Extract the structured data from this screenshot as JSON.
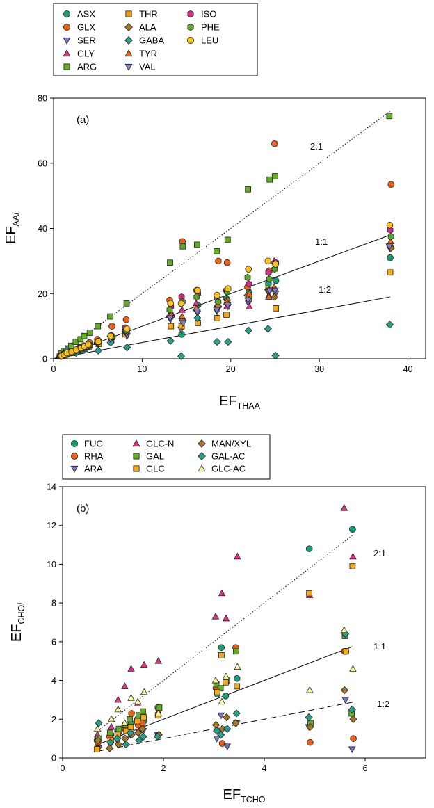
{
  "chart_data": [
    {
      "type": "scatter",
      "panel_label": "(a)",
      "xlabel_main": "EF",
      "xlabel_sub": "THAA",
      "ylabel_main": "EF",
      "ylabel_sub": "AAi",
      "xlim": [
        0,
        42
      ],
      "ylim": [
        0,
        80
      ],
      "xticks": [
        0,
        10,
        20,
        30,
        40
      ],
      "yticks": [
        0,
        20,
        40,
        60,
        80
      ],
      "grid": false,
      "legend_placement": "top-left, above plot",
      "legend": [
        {
          "name": "ASX",
          "marker": "circle",
          "color": "#1a9e77"
        },
        {
          "name": "GLX",
          "marker": "circle",
          "color": "#e8621a"
        },
        {
          "name": "SER",
          "marker": "triangle-down",
          "color": "#7b72c4"
        },
        {
          "name": "GLY",
          "marker": "triangle-up",
          "color": "#e0348a"
        },
        {
          "name": "ARG",
          "marker": "square",
          "color": "#65ab2a"
        },
        {
          "name": "THR",
          "marker": "square",
          "color": "#f0a81c"
        },
        {
          "name": "ALA",
          "marker": "diamond",
          "color": "#a6762a"
        },
        {
          "name": "GABA",
          "marker": "diamond",
          "color": "#2aa08a"
        },
        {
          "name": "TYR",
          "marker": "triangle-up",
          "color": "#e86a1a"
        },
        {
          "name": "VAL",
          "marker": "triangle-down",
          "color": "#8a7cc8"
        },
        {
          "name": "ISO",
          "marker": "hexagon",
          "color": "#d62e8a"
        },
        {
          "name": "PHE",
          "marker": "hexagon",
          "color": "#5aa82a"
        },
        {
          "name": "LEU",
          "marker": "circle",
          "color": "#f7c21e"
        }
      ],
      "reference_lines": [
        {
          "label": "2:1",
          "slope": 2,
          "x_range": [
            0,
            38
          ],
          "style": "dotted"
        },
        {
          "label": "1:1",
          "slope": 1,
          "x_range": [
            0,
            38
          ],
          "style": "solid"
        },
        {
          "label": "1:2",
          "slope": 0.5,
          "x_range": [
            0,
            38
          ],
          "style": "solid"
        }
      ],
      "x_groups": [
        0.8,
        1.2,
        1.6,
        2.0,
        2.6,
        3.0,
        3.5,
        4.0,
        5.0,
        6.5,
        8.2,
        13.2,
        14.5,
        16.2,
        18.5,
        19.6,
        22.0,
        24.3,
        25.0,
        38.0
      ],
      "series": [
        {
          "name": "ASX",
          "values": [
            0.8,
            1.2,
            1.7,
            2.0,
            2.6,
            3.1,
            3.4,
            4.1,
            5.1,
            6.5,
            8.5,
            13.5,
            7.5,
            16.5,
            16.0,
            18.5,
            20.5,
            23.0,
            24.0,
            31.0
          ]
        },
        {
          "name": "GLX",
          "values": [
            1.0,
            1.5,
            2.0,
            2.4,
            3.0,
            3.6,
            4.0,
            5.0,
            6.0,
            10.0,
            12.0,
            18.0,
            36.0,
            21.0,
            30.0,
            29.5,
            22.0,
            27.0,
            66.0,
            53.5
          ]
        },
        {
          "name": "SER",
          "values": [
            0.8,
            1.0,
            1.5,
            1.9,
            2.5,
            2.9,
            3.2,
            3.9,
            4.5,
            6.0,
            7.0,
            12.0,
            9.0,
            14.0,
            14.5,
            16.0,
            17.0,
            20.5,
            20.0,
            34.0
          ]
        },
        {
          "name": "GLY",
          "values": [
            0.9,
            1.3,
            1.8,
            2.1,
            2.8,
            3.2,
            3.7,
            4.3,
            5.3,
            7.0,
            9.0,
            14.0,
            15.0,
            17.0,
            18.0,
            16.0,
            16.0,
            19.5,
            30.0,
            35.0
          ]
        },
        {
          "name": "ARG",
          "values": [
            1.6,
            2.4,
            3.2,
            4.0,
            5.2,
            6.0,
            7.0,
            8.0,
            10.0,
            13.0,
            17.0,
            29.5,
            34.5,
            35.0,
            33.0,
            36.5,
            52.0,
            55.0,
            56.0,
            74.5
          ]
        },
        {
          "name": "THR",
          "values": [
            0.7,
            1.1,
            1.4,
            1.8,
            2.3,
            2.7,
            3.1,
            3.6,
            4.6,
            5.9,
            7.5,
            10.0,
            10.0,
            11.0,
            12.5,
            13.5,
            18.5,
            21.5,
            15.5,
            26.5
          ]
        },
        {
          "name": "ALA",
          "values": [
            0.8,
            1.2,
            1.6,
            2.0,
            2.6,
            3.0,
            3.5,
            4.0,
            5.0,
            6.5,
            8.0,
            13.0,
            12.0,
            15.0,
            16.0,
            18.0,
            19.5,
            21.0,
            19.0,
            34.0
          ]
        },
        {
          "name": "GABA",
          "values": [
            1.2,
            1.8,
            2.5,
            2.2,
            1.8,
            2.5,
            3.0,
            4.5,
            2.5,
            5.0,
            3.5,
            5.5,
            0.8,
            12.5,
            5.2,
            5.2,
            8.7,
            9.2,
            1.0,
            10.5
          ]
        },
        {
          "name": "TYR",
          "values": [
            0.9,
            1.3,
            1.7,
            2.1,
            2.7,
            3.1,
            3.6,
            4.1,
            5.1,
            6.6,
            8.8,
            13.5,
            13.0,
            15.5,
            16.5,
            17.5,
            20.0,
            19.0,
            22.0,
            36.0
          ]
        },
        {
          "name": "VAL",
          "values": [
            0.8,
            1.1,
            1.5,
            1.9,
            2.4,
            2.8,
            3.3,
            3.8,
            4.8,
            6.2,
            7.8,
            12.5,
            11.0,
            14.5,
            15.0,
            16.5,
            18.0,
            21.0,
            21.0,
            34.5
          ]
        },
        {
          "name": "ISO",
          "values": [
            0.9,
            1.4,
            1.9,
            2.2,
            2.9,
            3.4,
            3.9,
            4.4,
            5.4,
            7.2,
            9.5,
            16.0,
            19.0,
            20.0,
            18.5,
            21.0,
            23.0,
            26.5,
            29.5,
            39.5
          ]
        },
        {
          "name": "PHE",
          "values": [
            0.8,
            1.2,
            1.6,
            2.0,
            2.7,
            3.1,
            3.5,
            4.2,
            5.2,
            6.8,
            8.7,
            15.0,
            17.5,
            19.0,
            17.5,
            20.5,
            25.0,
            24.5,
            27.5,
            37.5
          ]
        },
        {
          "name": "LEU",
          "values": [
            0.9,
            1.3,
            1.8,
            2.2,
            2.8,
            3.3,
            3.8,
            4.4,
            5.3,
            7.0,
            9.2,
            17.0,
            17.0,
            21.0,
            19.5,
            21.5,
            27.5,
            30.0,
            29.0,
            41.0
          ]
        }
      ]
    },
    {
      "type": "scatter",
      "panel_label": "(b)",
      "xlabel_main": "EF",
      "xlabel_sub": "TCHO",
      "ylabel_main": "EF",
      "ylabel_sub": "CHOi",
      "xlim": [
        0,
        7.2
      ],
      "ylim": [
        0,
        14
      ],
      "xticks": [
        0,
        2,
        4,
        6
      ],
      "yticks": [
        0,
        2,
        4,
        6,
        8,
        10,
        12,
        14
      ],
      "grid": false,
      "legend_placement": "top-left, above plot",
      "legend": [
        {
          "name": "FUC",
          "marker": "circle",
          "color": "#1a9e77"
        },
        {
          "name": "RHA",
          "marker": "circle",
          "color": "#e8621a"
        },
        {
          "name": "ARA",
          "marker": "triangle-down",
          "color": "#7b72c4"
        },
        {
          "name": "GLC-N",
          "marker": "triangle-up",
          "color": "#e0348a"
        },
        {
          "name": "GAL",
          "marker": "square",
          "color": "#65ab2a"
        },
        {
          "name": "GLC",
          "marker": "square",
          "color": "#f0a81c"
        },
        {
          "name": "MAN/XYL",
          "marker": "diamond",
          "color": "#a6762a"
        },
        {
          "name": "GAL-AC",
          "marker": "diamond",
          "color": "#2aa08a"
        },
        {
          "name": "GLC-AC",
          "marker": "triangle-up",
          "color": "#fbf5a0"
        }
      ],
      "reference_lines": [
        {
          "label": "2:1",
          "slope": 2,
          "x_range": [
            0.7,
            5.75
          ],
          "style": "dotted"
        },
        {
          "label": "1:1",
          "slope": 1,
          "x_range": [
            0.7,
            5.75
          ],
          "style": "solid"
        },
        {
          "label": "1:2",
          "slope": 0.5,
          "x_range": [
            0.7,
            5.75
          ],
          "style": "dashed"
        }
      ],
      "x_groups": [
        0.7,
        0.95,
        1.1,
        1.25,
        1.35,
        1.5,
        1.6,
        1.9,
        3.05,
        3.15,
        3.25,
        3.45,
        4.9,
        5.6,
        5.75
      ],
      "series": [
        {
          "name": "FUC",
          "values": [
            0.9,
            1.2,
            1.4,
            1.6,
            1.8,
            2.0,
            1.9,
            2.6,
            3.3,
            5.7,
            3.2,
            4.1,
            10.8,
            5.5,
            11.8
          ]
        },
        {
          "name": "RHA",
          "values": [
            0.8,
            1.1,
            1.3,
            1.5,
            2.3,
            1.7,
            1.8,
            2.5,
            3.6,
            0.75,
            4.0,
            5.7,
            0.8,
            5.5,
            1.0
          ]
        },
        {
          "name": "ARA",
          "values": [
            0.5,
            0.7,
            0.9,
            1.0,
            1.2,
            1.3,
            1.4,
            1.2,
            1.0,
            2.2,
            0.6,
            1.8,
            1.6,
            3.0,
            0.45
          ]
        },
        {
          "name": "GLC-N",
          "values": [
            1.2,
            1.6,
            3.0,
            3.7,
            4.6,
            2.8,
            4.8,
            5.0,
            7.3,
            8.5,
            7.2,
            10.4,
            8.4,
            12.9,
            10.4
          ]
        },
        {
          "name": "GAL",
          "values": [
            1.0,
            1.3,
            1.5,
            1.7,
            2.0,
            2.2,
            2.4,
            2.6,
            3.8,
            3.6,
            4.0,
            5.5,
            1.8,
            6.3,
            2.3
          ]
        },
        {
          "name": "GLC",
          "values": [
            0.45,
            0.9,
            1.2,
            1.4,
            1.6,
            1.9,
            2.1,
            2.2,
            3.4,
            5.3,
            3.9,
            3.7,
            8.5,
            5.5,
            9.9
          ]
        },
        {
          "name": "MAN/XYL",
          "values": [
            0.9,
            0.5,
            0.7,
            1.0,
            1.2,
            1.3,
            1.5,
            1.2,
            1.7,
            1.5,
            2.1,
            1.8,
            1.6,
            3.5,
            2.0
          ]
        },
        {
          "name": "GAL-AC",
          "values": [
            1.8,
            0.8,
            1.0,
            0.7,
            1.3,
            0.9,
            1.1,
            1.1,
            1.4,
            1.2,
            1.5,
            2.3,
            2.1,
            6.4,
            2.5
          ]
        },
        {
          "name": "GLC-AC",
          "values": [
            1.5,
            2.0,
            2.5,
            1.8,
            3.1,
            2.9,
            3.4,
            2.3,
            4.0,
            2.9,
            4.2,
            4.7,
            3.5,
            6.6,
            4.6
          ]
        }
      ]
    }
  ]
}
